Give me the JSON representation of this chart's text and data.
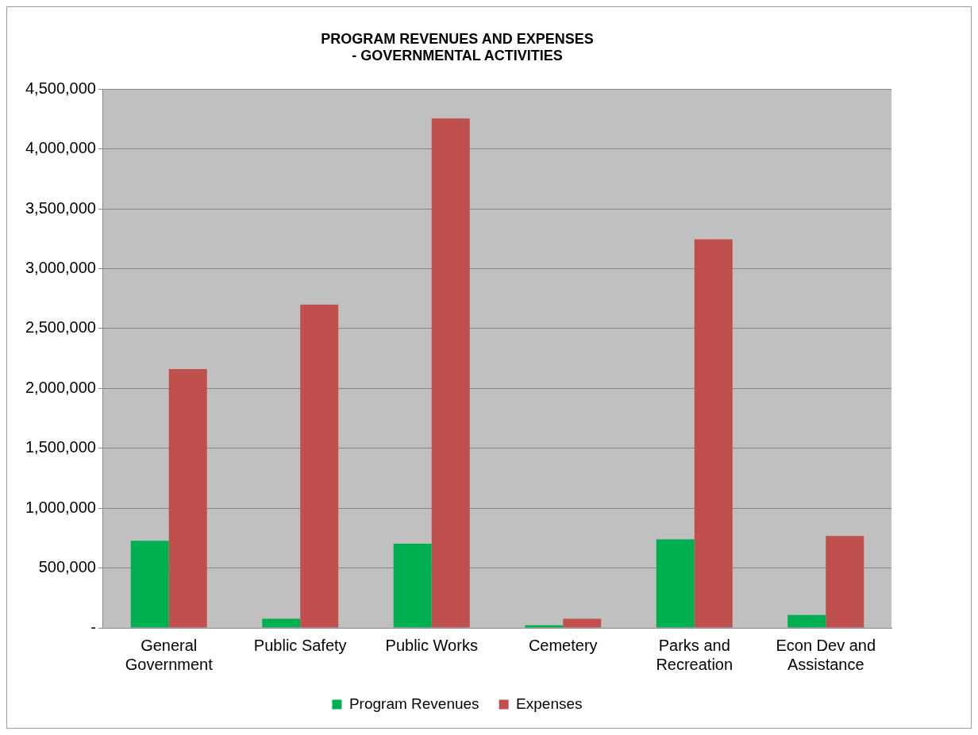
{
  "chart_data": {
    "type": "bar",
    "title": [
      "PROGRAM REVENUES AND EXPENSES",
      "- GOVERNMENTAL ACTIVITIES"
    ],
    "categories": [
      [
        "General",
        "Government"
      ],
      "Public Safety",
      "Public Works",
      "Cemetery",
      [
        "Parks and",
        "Recreation"
      ],
      [
        "Econ Dev and",
        "Assistance"
      ]
    ],
    "series": [
      {
        "name": "Program Revenues",
        "color": "#00b050",
        "values": [
          728000,
          77000,
          702000,
          21000,
          740000,
          107000
        ]
      },
      {
        "name": "Expenses",
        "color": "#c0504d",
        "values": [
          2161000,
          2700000,
          4254000,
          77000,
          3245000,
          767000
        ]
      }
    ],
    "ylim": [
      0,
      4500000
    ],
    "yticks": [
      {
        "value": 0,
        "label": "-"
      },
      {
        "value": 500000,
        "label": "500,000"
      },
      {
        "value": 1000000,
        "label": "1,000,000"
      },
      {
        "value": 1500000,
        "label": "1,500,000"
      },
      {
        "value": 2000000,
        "label": "2,000,000"
      },
      {
        "value": 2500000,
        "label": "2,500,000"
      },
      {
        "value": 3000000,
        "label": "3,000,000"
      },
      {
        "value": 3500000,
        "label": "3,500,000"
      },
      {
        "value": 4000000,
        "label": "4,000,000"
      },
      {
        "value": 4500000,
        "label": "4,500,000"
      }
    ],
    "grid": "y",
    "legend": "bottom"
  }
}
